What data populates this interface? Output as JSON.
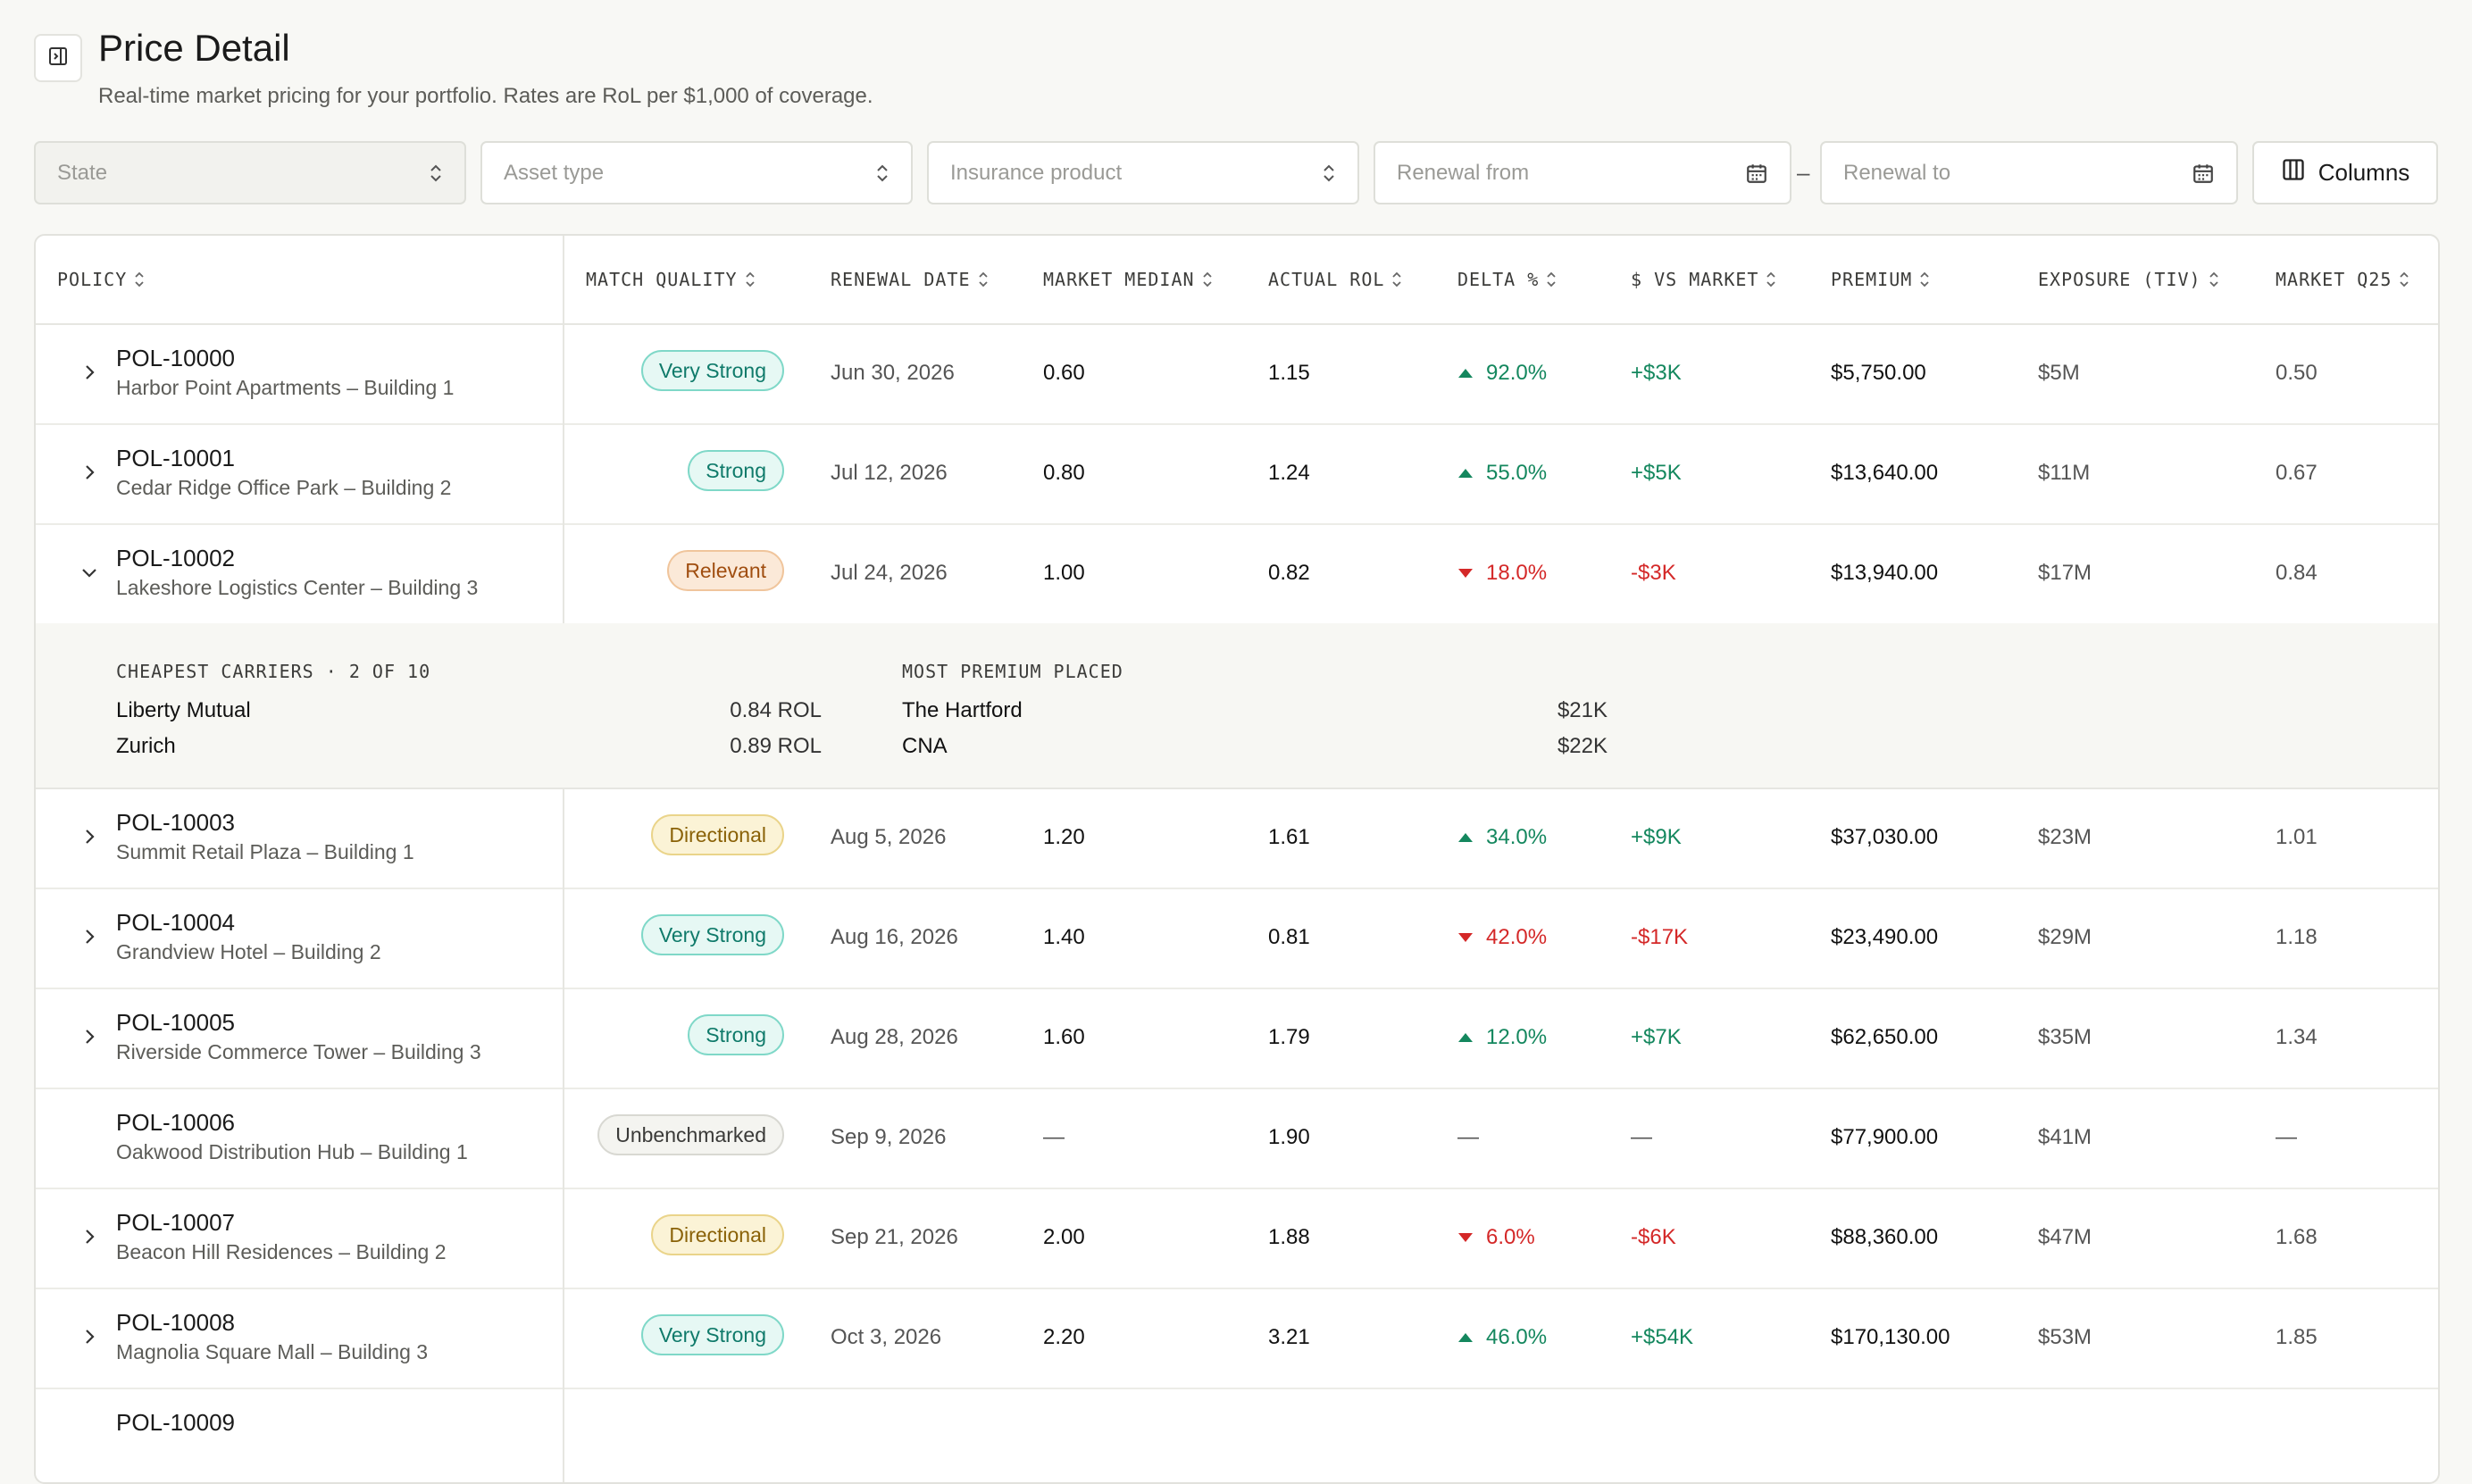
{
  "header": {
    "title": "Price Detail",
    "subtitle": "Real-time market pricing for your portfolio. Rates are RoL per $1,000 of coverage."
  },
  "filters": {
    "state": "State",
    "asset_type": "Asset type",
    "insurance_product": "Insurance product",
    "renewal_from": "Renewal from",
    "renewal_to": "Renewal to",
    "dash": "–",
    "columns": "Columns"
  },
  "columns": [
    "POLICY",
    "MATCH QUALITY",
    "RENEWAL DATE",
    "MARKET MEDIAN",
    "ACTUAL ROL",
    "DELTA %",
    "$ VS MARKET",
    "PREMIUM",
    "EXPOSURE (TIV)",
    "MARKET Q25"
  ],
  "rows": [
    {
      "id": "POL-10000",
      "name": "Harbor Point Apartments – Building 1",
      "quality": "Very Strong",
      "renewal": "Jun 30, 2026",
      "median": "0.60",
      "actual": "1.15",
      "delta": "92.0%",
      "dir": "up",
      "vs": "+$3K",
      "premium": "$5,750.00",
      "exposure": "$5M",
      "q25": "0.50",
      "chevron": "right"
    },
    {
      "id": "POL-10001",
      "name": "Cedar Ridge Office Park – Building 2",
      "quality": "Strong",
      "renewal": "Jul 12, 2026",
      "median": "0.80",
      "actual": "1.24",
      "delta": "55.0%",
      "dir": "up",
      "vs": "+$5K",
      "premium": "$13,640.00",
      "exposure": "$11M",
      "q25": "0.67",
      "chevron": "right"
    },
    {
      "id": "POL-10002",
      "name": "Lakeshore Logistics Center – Building 3",
      "quality": "Relevant",
      "renewal": "Jul 24, 2026",
      "median": "1.00",
      "actual": "0.82",
      "delta": "18.0%",
      "dir": "down",
      "vs": "-$3K",
      "premium": "$13,940.00",
      "exposure": "$17M",
      "q25": "0.84",
      "chevron": "down"
    },
    {
      "id": "POL-10003",
      "name": "Summit Retail Plaza – Building 1",
      "quality": "Directional",
      "renewal": "Aug 5, 2026",
      "median": "1.20",
      "actual": "1.61",
      "delta": "34.0%",
      "dir": "up",
      "vs": "+$9K",
      "premium": "$37,030.00",
      "exposure": "$23M",
      "q25": "1.01",
      "chevron": "right"
    },
    {
      "id": "POL-10004",
      "name": "Grandview Hotel – Building 2",
      "quality": "Very Strong",
      "renewal": "Aug 16, 2026",
      "median": "1.40",
      "actual": "0.81",
      "delta": "42.0%",
      "dir": "down",
      "vs": "-$17K",
      "premium": "$23,490.00",
      "exposure": "$29M",
      "q25": "1.18",
      "chevron": "right"
    },
    {
      "id": "POL-10005",
      "name": "Riverside Commerce Tower – Building 3",
      "quality": "Strong",
      "renewal": "Aug 28, 2026",
      "median": "1.60",
      "actual": "1.79",
      "delta": "12.0%",
      "dir": "up",
      "vs": "+$7K",
      "premium": "$62,650.00",
      "exposure": "$35M",
      "q25": "1.34",
      "chevron": "right"
    },
    {
      "id": "POL-10006",
      "name": "Oakwood Distribution Hub – Building 1",
      "quality": "Unbenchmarked",
      "renewal": "Sep 9, 2026",
      "median": "—",
      "actual": "1.90",
      "delta": "—",
      "dir": "none",
      "vs": "—",
      "premium": "$77,900.00",
      "exposure": "$41M",
      "q25": "—",
      "chevron": "none"
    },
    {
      "id": "POL-10007",
      "name": "Beacon Hill Residences – Building 2",
      "quality": "Directional",
      "renewal": "Sep 21, 2026",
      "median": "2.00",
      "actual": "1.88",
      "delta": "6.0%",
      "dir": "down",
      "vs": "-$6K",
      "premium": "$88,360.00",
      "exposure": "$47M",
      "q25": "1.68",
      "chevron": "right"
    },
    {
      "id": "POL-10008",
      "name": "Magnolia Square Mall – Building 3",
      "quality": "Very Strong",
      "renewal": "Oct 3, 2026",
      "median": "2.20",
      "actual": "3.21",
      "delta": "46.0%",
      "dir": "up",
      "vs": "+$54K",
      "premium": "$170,130.00",
      "exposure": "$53M",
      "q25": "1.85",
      "chevron": "right"
    },
    {
      "id": "POL-10009",
      "name": "",
      "quality": "",
      "renewal": "",
      "median": "",
      "actual": "",
      "delta": "",
      "dir": "none",
      "vs": "",
      "premium": "",
      "exposure": "",
      "q25": "",
      "chevron": "none"
    }
  ],
  "expanded": {
    "cheapest_heading": "CHEAPEST CARRIERS · 2 OF 10",
    "cheapest": [
      {
        "name": "Liberty Mutual",
        "value": "0.84 ROL"
      },
      {
        "name": "Zurich",
        "value": "0.89 ROL"
      }
    ],
    "premium_heading": "MOST PREMIUM PLACED",
    "premium": [
      {
        "name": "The Hartford",
        "value": "$21K"
      },
      {
        "name": "CNA",
        "value": "$22K"
      }
    ]
  },
  "colors": {
    "positive": "#14875e",
    "negative": "#d42828",
    "background": "#f8f8f5"
  }
}
